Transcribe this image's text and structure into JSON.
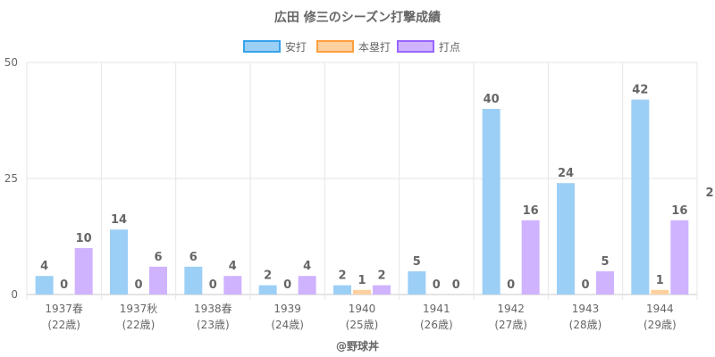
{
  "chart_data": {
    "type": "bar",
    "title": "広田 修三のシーズン打撃成績",
    "categories": [
      [
        "1937春",
        "(22歳)"
      ],
      [
        "1937秋",
        "(22歳)"
      ],
      [
        "1938春",
        "(23歳)"
      ],
      [
        "1939",
        "(24歳)"
      ],
      [
        "1940",
        "(25歳)"
      ],
      [
        "1941",
        "(26歳)"
      ],
      [
        "1942",
        "(27歳)"
      ],
      [
        "1943",
        "(28歳)"
      ],
      [
        "1944",
        "(29歳)"
      ]
    ],
    "series": [
      {
        "name": "安打",
        "values": [
          4,
          14,
          6,
          2,
          2,
          5,
          40,
          24,
          42
        ],
        "color": "#9ccff5",
        "border": "#36a2eb"
      },
      {
        "name": "本塁打",
        "values": [
          0,
          0,
          0,
          0,
          1,
          0,
          0,
          0,
          1
        ],
        "color": "#ffd0a0",
        "border": "#ff9f40"
      },
      {
        "name": "打点",
        "values": [
          10,
          6,
          4,
          4,
          2,
          0,
          16,
          5,
          16
        ],
        "color": "#d0b3ff",
        "border": "#9966ff"
      }
    ],
    "ylim": [
      0,
      50
    ],
    "yticks": [
      0,
      25,
      50
    ],
    "legend_position": "top",
    "grid": true,
    "right_edge_label": "2"
  },
  "credit": "@野球丼"
}
